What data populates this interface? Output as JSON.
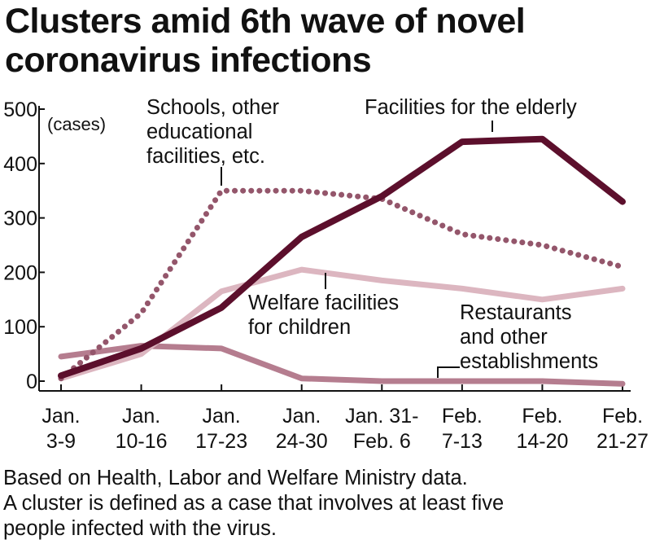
{
  "title_lines": [
    "Clusters amid 6th wave of novel",
    "coronavirus infections"
  ],
  "footnote_lines": [
    "Based on Health, Labor and Welfare Ministry data.",
    "A cluster is defined as a case that involves at least five",
    "people infected with the virus."
  ],
  "chart_data": {
    "type": "line",
    "title": "Clusters amid 6th wave of novel coronavirus infections",
    "unit_label": "(cases)",
    "ylim": [
      0,
      500
    ],
    "yticks": [
      "0",
      "100",
      "200",
      "300",
      "400",
      "500"
    ],
    "categories": [
      [
        "Jan.",
        "3-9"
      ],
      [
        "Jan.",
        "10-16"
      ],
      [
        "Jan.",
        "17-23"
      ],
      [
        "Jan.",
        "24-30"
      ],
      [
        "Jan. 31-",
        "Feb. 6"
      ],
      [
        "Feb.",
        "7-13"
      ],
      [
        "Feb.",
        "14-20"
      ],
      [
        "Feb.",
        "21-27"
      ]
    ],
    "grid": false,
    "series": [
      {
        "name": "Facilities for the elderly",
        "label_lines": [
          "Facilities for the elderly"
        ],
        "values": [
          10,
          60,
          135,
          265,
          340,
          440,
          445,
          330
        ],
        "color": "#5c0f2c",
        "style": "solid",
        "width": 8
      },
      {
        "name": "Schools, other educational facilities, etc.",
        "label_lines": [
          "Schools, other",
          "educational",
          "facilities, etc."
        ],
        "values": [
          5,
          125,
          350,
          350,
          335,
          270,
          250,
          210
        ],
        "color": "#94566b",
        "style": "dotted",
        "width": 7
      },
      {
        "name": "Welfare facilities for children",
        "label_lines": [
          "Welfare facilities",
          "for children"
        ],
        "values": [
          5,
          50,
          165,
          205,
          185,
          170,
          150,
          170
        ],
        "color": "#dcb6c0",
        "style": "solid",
        "width": 7
      },
      {
        "name": "Restaurants and other establishments",
        "label_lines": [
          "Restaurants",
          "and other",
          "establishments"
        ],
        "values": [
          45,
          65,
          60,
          5,
          0,
          0,
          0,
          -5
        ],
        "color": "#b57d8f",
        "style": "solid",
        "width": 7
      }
    ]
  }
}
